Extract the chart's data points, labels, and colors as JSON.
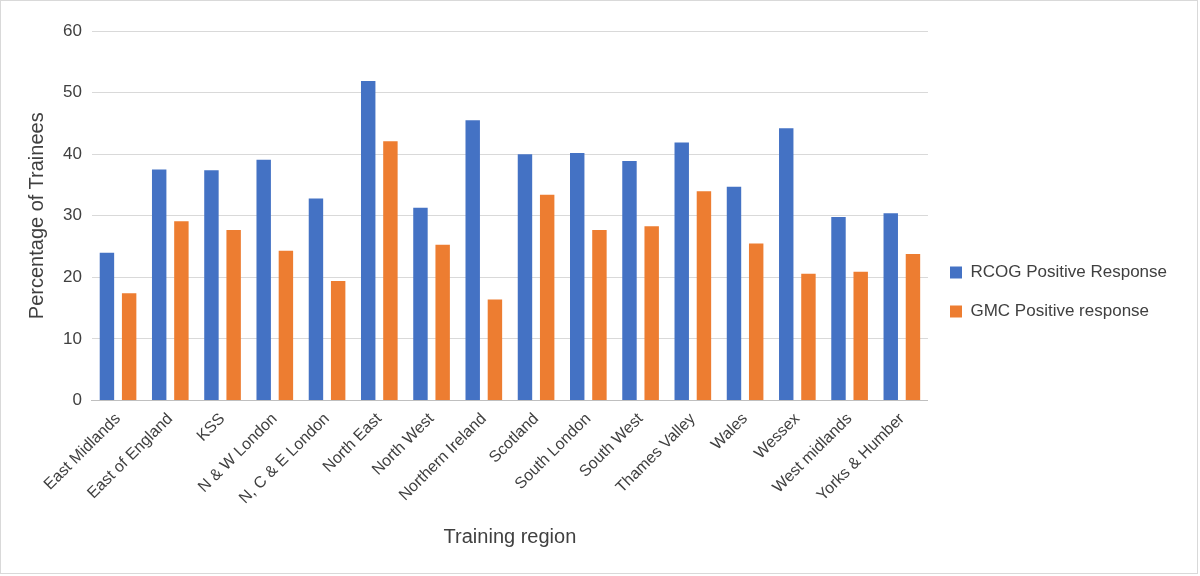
{
  "chart_data": {
    "type": "bar",
    "xlabel": "Training region",
    "ylabel": "Percentage of Trainees",
    "categories": [
      "East Midlands",
      "East of England",
      "KSS",
      "N & W London",
      "N, C & E London",
      "North East",
      "North West",
      "Northern Ireland",
      "Scotland",
      "South London",
      "South West",
      "Thames Valley",
      "Wales",
      "Wessex",
      "West midlands",
      "Yorks & Humber"
    ],
    "series": [
      {
        "name": "RCOG Positive Response",
        "color": "#4472c4",
        "values": [
          24.0,
          37.5,
          37.4,
          39.1,
          32.8,
          51.9,
          31.3,
          45.5,
          40.0,
          40.2,
          38.9,
          41.9,
          34.7,
          44.2,
          29.8,
          30.4
        ]
      },
      {
        "name": "GMC Positive response",
        "color": "#ed7d31",
        "values": [
          17.4,
          29.1,
          27.7,
          24.3,
          19.4,
          42.1,
          25.3,
          16.4,
          33.4,
          27.7,
          28.3,
          34.0,
          25.5,
          20.6,
          20.9,
          23.8
        ]
      }
    ],
    "ylim": [
      0,
      60
    ],
    "yticks": [
      0,
      10,
      20,
      30,
      40,
      50,
      60
    ],
    "grid": "y",
    "legend": "right"
  }
}
